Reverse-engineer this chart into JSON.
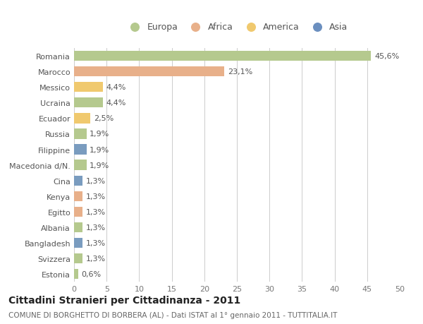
{
  "categories": [
    "Romania",
    "Marocco",
    "Messico",
    "Ucraina",
    "Ecuador",
    "Russia",
    "Filippine",
    "Macedonia d/N.",
    "Cina",
    "Kenya",
    "Egitto",
    "Albania",
    "Bangladesh",
    "Svizzera",
    "Estonia"
  ],
  "values": [
    45.6,
    23.1,
    4.4,
    4.4,
    2.5,
    1.9,
    1.9,
    1.9,
    1.3,
    1.3,
    1.3,
    1.3,
    1.3,
    1.3,
    0.6
  ],
  "labels": [
    "45,6%",
    "23,1%",
    "4,4%",
    "4,4%",
    "2,5%",
    "1,9%",
    "1,9%",
    "1,9%",
    "1,3%",
    "1,3%",
    "1,3%",
    "1,3%",
    "1,3%",
    "1,3%",
    "0,6%"
  ],
  "colors": [
    "#b5c98e",
    "#e8b08a",
    "#f0c96e",
    "#b5c98e",
    "#f0c96e",
    "#b5c98e",
    "#7a9cbf",
    "#b5c98e",
    "#7a9cbf",
    "#e8b08a",
    "#e8b08a",
    "#b5c98e",
    "#7a9cbf",
    "#b5c98e",
    "#b5c98e"
  ],
  "legend": [
    {
      "label": "Europa",
      "color": "#b5c98e"
    },
    {
      "label": "Africa",
      "color": "#e8b08a"
    },
    {
      "label": "America",
      "color": "#f0c96e"
    },
    {
      "label": "Asia",
      "color": "#6b8fbf"
    }
  ],
  "xlim": [
    0,
    50
  ],
  "xticks": [
    0,
    5,
    10,
    15,
    20,
    25,
    30,
    35,
    40,
    45,
    50
  ],
  "title": "Cittadini Stranieri per Cittadinanza - 2011",
  "subtitle": "COMUNE DI BORGHETTO DI BORBERA (AL) - Dati ISTAT al 1° gennaio 2011 - TUTTITALIA.IT",
  "background_color": "#ffffff",
  "grid_color": "#cccccc",
  "bar_height": 0.65,
  "label_fontsize": 8,
  "tick_fontsize": 8,
  "title_fontsize": 10,
  "subtitle_fontsize": 7.5
}
